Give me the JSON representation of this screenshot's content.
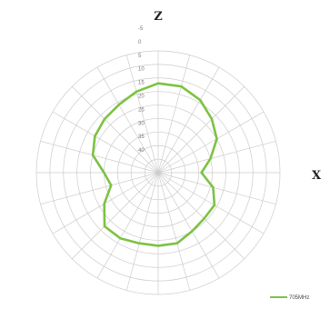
{
  "chart_data": {
    "type": "polar-line",
    "axis_labels": {
      "top": "Z",
      "right": "X"
    },
    "radial_tick_labels": [
      "-5",
      "0",
      "5",
      "10",
      "15",
      "20",
      "25",
      "30",
      "35",
      "40"
    ],
    "radial_range_db": [
      -40,
      5
    ],
    "angle_step_deg": 15,
    "grid": true,
    "legend_position": "bottom-right",
    "series": [
      {
        "name": "705MHz",
        "color": "#7dc242",
        "angle_deg": [
          0,
          15,
          30,
          45,
          60,
          75,
          90,
          105,
          120,
          135,
          150,
          165,
          180,
          195,
          210,
          225,
          240,
          255,
          270,
          285,
          300,
          315,
          330,
          345
        ],
        "gain_db": [
          -7,
          -7,
          -9,
          -12,
          -15,
          -20,
          -24,
          -19,
          -16,
          -16,
          -15,
          -13,
          -13,
          -13,
          -12,
          -12,
          -17,
          -22,
          -20,
          -15,
          -13,
          -12,
          -11,
          -9
        ]
      }
    ]
  }
}
